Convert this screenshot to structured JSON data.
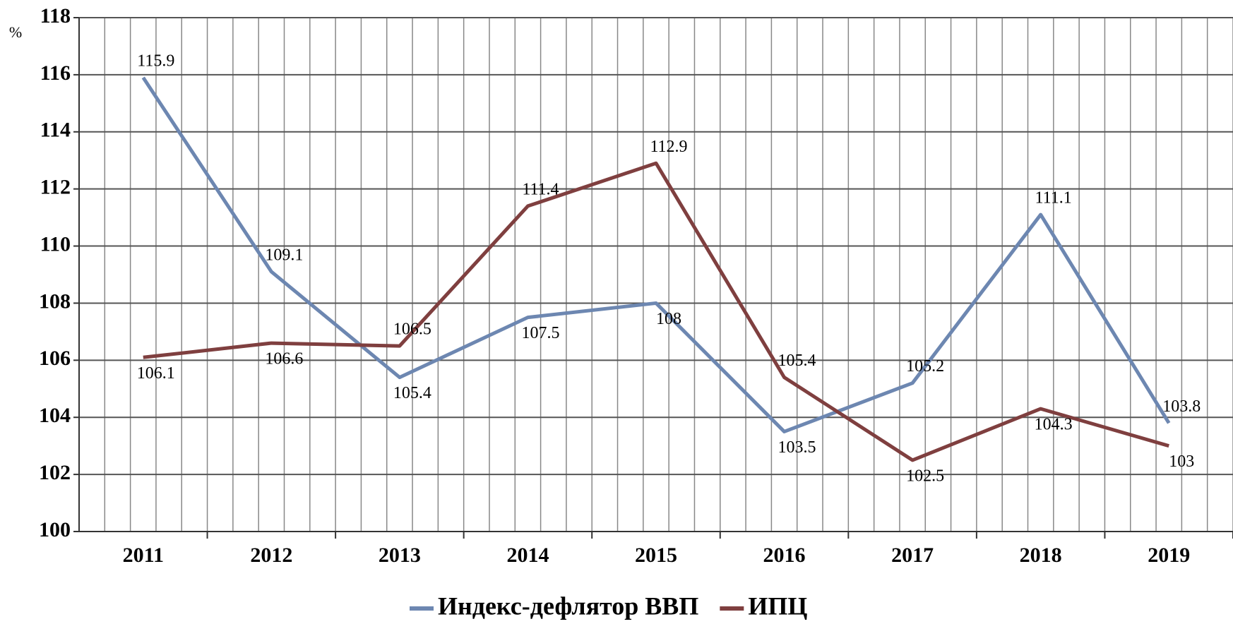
{
  "chart_data": {
    "type": "line",
    "y_label": "%",
    "categories": [
      "2011",
      "2012",
      "2013",
      "2014",
      "2015",
      "2016",
      "2017",
      "2018",
      "2019"
    ],
    "series": [
      {
        "name": "Индекс-дефлятор ВВП",
        "color": "#6d87b1",
        "values": [
          115.9,
          109.1,
          105.4,
          107.5,
          108,
          103.5,
          105.2,
          111.1,
          103.8
        ]
      },
      {
        "name": "ИПЦ",
        "color": "#7f3f3f",
        "values": [
          106.1,
          106.6,
          106.5,
          111.4,
          112.9,
          105.4,
          102.5,
          104.3,
          103
        ]
      }
    ],
    "ylim": [
      100,
      118
    ],
    "yticks": [
      100,
      102,
      104,
      106,
      108,
      110,
      112,
      114,
      116,
      118
    ],
    "grid": true,
    "legend": "bottom"
  }
}
